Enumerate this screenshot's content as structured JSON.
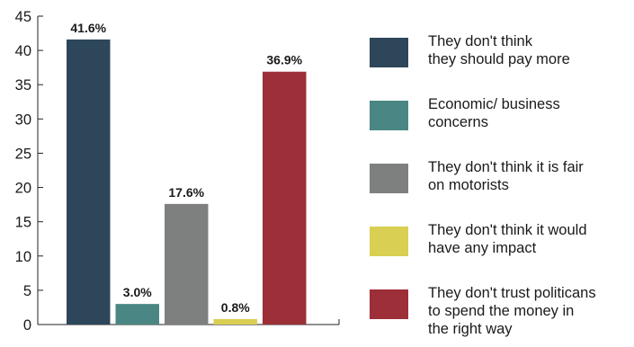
{
  "chart_data": {
    "type": "bar",
    "categories": [
      "They don't think they should pay more",
      "Economic/ business concerns",
      "They don't think it is fair on motorists",
      "They don't think it would have any impact",
      "They don't trust politicans to spend the money in the right way"
    ],
    "values": [
      41.6,
      3.0,
      17.6,
      0.8,
      36.9
    ],
    "data_labels": [
      "41.6%",
      "3.0%",
      "17.6%",
      "0.8%",
      "36.9%"
    ],
    "colors": [
      "#2d4659",
      "#4a8784",
      "#7e807f",
      "#d9cf52",
      "#9c2f38"
    ],
    "ylim": [
      0,
      45
    ],
    "yticks": [
      0,
      5,
      10,
      15,
      20,
      25,
      30,
      35,
      40,
      45
    ],
    "grid": false,
    "legend_position": "right"
  },
  "legend": [
    {
      "line1": "They don't think",
      "line2": "they should pay more"
    },
    {
      "line1": "Economic/ business",
      "line2": "concerns"
    },
    {
      "line1": "They don't think it is fair",
      "line2": "on motorists"
    },
    {
      "line1": "They don't think it would",
      "line2": "have any impact"
    },
    {
      "line1": "They don't trust politicans",
      "line2": "to spend the money in",
      "line3": "the right way"
    }
  ]
}
